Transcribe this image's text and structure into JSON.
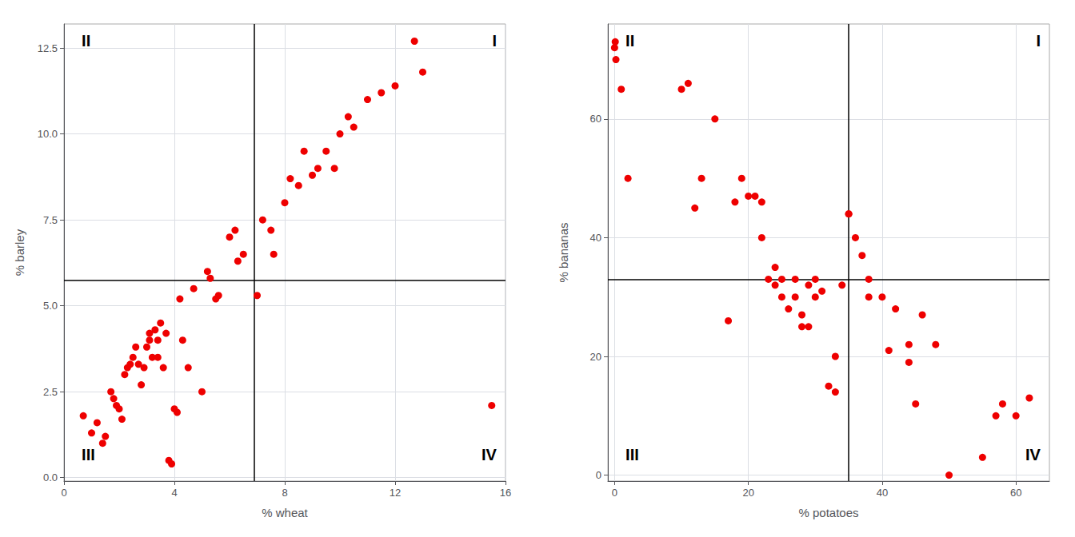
{
  "chart_data": [
    {
      "type": "scatter",
      "x": [
        0.7,
        1.0,
        1.2,
        1.4,
        1.5,
        1.7,
        1.8,
        1.9,
        2.0,
        2.1,
        2.2,
        2.3,
        2.4,
        2.5,
        2.6,
        2.7,
        2.8,
        2.9,
        3.0,
        3.1,
        3.1,
        3.2,
        3.3,
        3.4,
        3.4,
        3.5,
        3.6,
        3.7,
        3.8,
        3.9,
        4.0,
        4.1,
        4.2,
        4.3,
        4.5,
        4.7,
        5.0,
        5.2,
        5.3,
        5.5,
        5.6,
        6.0,
        6.2,
        6.3,
        6.5,
        7.0,
        7.2,
        7.5,
        7.6,
        8.0,
        8.2,
        8.5,
        8.7,
        9.0,
        9.2,
        9.5,
        9.8,
        10.0,
        10.3,
        10.5,
        11.0,
        11.5,
        12.0,
        12.7,
        13.0,
        15.5
      ],
      "values": [
        1.8,
        1.3,
        1.6,
        1.0,
        1.2,
        2.5,
        2.3,
        2.1,
        2.0,
        1.7,
        3.0,
        3.2,
        3.3,
        3.5,
        3.8,
        3.3,
        2.7,
        3.2,
        3.8,
        4.0,
        4.2,
        3.5,
        4.3,
        4.0,
        3.5,
        4.5,
        3.2,
        4.2,
        0.5,
        0.4,
        2.0,
        1.9,
        5.2,
        4.0,
        3.2,
        5.5,
        2.5,
        6.0,
        5.8,
        5.2,
        5.3,
        7.0,
        7.2,
        6.3,
        6.5,
        5.3,
        7.5,
        7.2,
        6.5,
        8.0,
        8.7,
        8.5,
        9.5,
        8.8,
        9.0,
        9.5,
        9.0,
        10.0,
        10.5,
        10.2,
        11.0,
        11.2,
        11.4,
        12.7,
        11.8,
        2.1
      ],
      "color": "#EE0000",
      "vlines": [
        {
          "value": 6.9,
          "color": "#000000"
        }
      ],
      "hlines": [
        {
          "value": 5.75,
          "color": "#000000"
        }
      ],
      "xlabel": "% wheat",
      "ylabel": "% barley",
      "xlim": [
        0,
        16
      ],
      "ylim": [
        -0.1,
        13.2
      ],
      "xticks": [
        0,
        4,
        8,
        12,
        16
      ],
      "yticks": [
        {
          "value": 0,
          "label": "0.0"
        },
        2.5,
        {
          "value": 5,
          "label": "5.0"
        },
        7.5,
        {
          "value": 10,
          "label": "10.0"
        },
        12.5
      ],
      "annotations": [
        "II",
        "I",
        "III",
        "IV"
      ],
      "grid": true
    },
    {
      "type": "scatter",
      "x": [
        0.0,
        0.1,
        0.2,
        1.0,
        2.0,
        10.0,
        11.0,
        12.0,
        13.0,
        15.0,
        17.0,
        18.0,
        19.0,
        20.0,
        21.0,
        22.0,
        22.0,
        23.0,
        24.0,
        24.0,
        25.0,
        25.0,
        26.0,
        27.0,
        27.0,
        28.0,
        28.0,
        29.0,
        29.0,
        30.0,
        30.0,
        31.0,
        32.0,
        33.0,
        33.0,
        34.0,
        35.0,
        35.0,
        36.0,
        37.0,
        38.0,
        38.0,
        40.0,
        41.0,
        42.0,
        44.0,
        44.0,
        45.0,
        46.0,
        48.0,
        50.0,
        55.0,
        57.0,
        58.0,
        60.0,
        62.0
      ],
      "values": [
        72.0,
        73.0,
        70.0,
        65.0,
        50.0,
        65.0,
        66.0,
        45.0,
        50.0,
        60.0,
        26.0,
        46.0,
        50.0,
        47.0,
        47.0,
        40.0,
        46.0,
        33.0,
        32.0,
        35.0,
        30.0,
        33.0,
        28.0,
        30.0,
        33.0,
        25.0,
        27.0,
        32.0,
        25.0,
        30.0,
        33.0,
        31.0,
        15.0,
        14.0,
        20.0,
        32.0,
        44.0,
        44.0,
        40.0,
        37.0,
        30.0,
        33.0,
        30.0,
        21.0,
        28.0,
        22.0,
        19.0,
        12.0,
        27.0,
        22.0,
        0.0,
        3.0,
        10.0,
        12.0,
        10.0,
        13.0
      ],
      "color": "#EE0000",
      "vlines": [
        {
          "value": 35.0,
          "color": "#000000"
        }
      ],
      "hlines": [
        {
          "value": 33.0,
          "color": "#000000"
        }
      ],
      "xlabel": "% potatoes",
      "ylabel": "% bananas",
      "xlim": [
        -1,
        65
      ],
      "ylim": [
        -1,
        76
      ],
      "xticks": [
        0,
        20,
        40,
        60
      ],
      "yticks": [
        0,
        20,
        40,
        60
      ],
      "annotations": [
        "II",
        "I",
        "III",
        "IV"
      ],
      "grid": true
    }
  ]
}
